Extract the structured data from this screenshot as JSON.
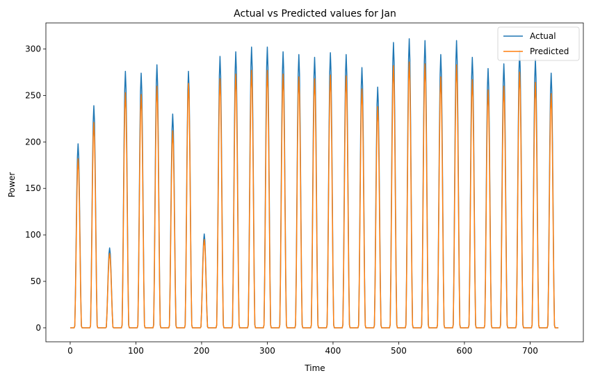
{
  "chart_data": {
    "type": "line",
    "title": "Actual vs Predicted values for Jan",
    "xlabel": "Time",
    "ylabel": "Power",
    "xlim": [
      -37,
      781
    ],
    "ylim": [
      -15,
      328
    ],
    "xticks": [
      0,
      100,
      200,
      300,
      400,
      500,
      600,
      700
    ],
    "yticks": [
      0,
      50,
      100,
      150,
      200,
      250,
      300
    ],
    "grid": false,
    "legend_position": "top-right",
    "colors": {
      "Actual": "#1f77b4",
      "Predicted": "#ff7f0e"
    },
    "n_points": 744,
    "daily_peaks": [
      {
        "center": 12,
        "actual": 198,
        "predicted": 182
      },
      {
        "center": 36,
        "actual": 239,
        "predicted": 221
      },
      {
        "center": 60,
        "actual": 86,
        "predicted": 80
      },
      {
        "center": 84,
        "actual": 276,
        "predicted": 253
      },
      {
        "center": 108,
        "actual": 274,
        "predicted": 251
      },
      {
        "center": 132,
        "actual": 283,
        "predicted": 260
      },
      {
        "center": 156,
        "actual": 230,
        "predicted": 212
      },
      {
        "center": 180,
        "actual": 276,
        "predicted": 263
      },
      {
        "center": 204,
        "actual": 101,
        "predicted": 95
      },
      {
        "center": 228,
        "actual": 292,
        "predicted": 268
      },
      {
        "center": 252,
        "actual": 297,
        "predicted": 273
      },
      {
        "center": 276,
        "actual": 302,
        "predicted": 277
      },
      {
        "center": 300,
        "actual": 302,
        "predicted": 277
      },
      {
        "center": 324,
        "actual": 297,
        "predicted": 273
      },
      {
        "center": 348,
        "actual": 294,
        "predicted": 270
      },
      {
        "center": 372,
        "actual": 291,
        "predicted": 268
      },
      {
        "center": 396,
        "actual": 296,
        "predicted": 272
      },
      {
        "center": 420,
        "actual": 294,
        "predicted": 271
      },
      {
        "center": 444,
        "actual": 280,
        "predicted": 257
      },
      {
        "center": 468,
        "actual": 259,
        "predicted": 238
      },
      {
        "center": 492,
        "actual": 307,
        "predicted": 282
      },
      {
        "center": 516,
        "actual": 311,
        "predicted": 286
      },
      {
        "center": 540,
        "actual": 309,
        "predicted": 284
      },
      {
        "center": 564,
        "actual": 294,
        "predicted": 270
      },
      {
        "center": 588,
        "actual": 309,
        "predicted": 283
      },
      {
        "center": 612,
        "actual": 291,
        "predicted": 267
      },
      {
        "center": 636,
        "actual": 279,
        "predicted": 256
      },
      {
        "center": 660,
        "actual": 284,
        "predicted": 260
      },
      {
        "center": 684,
        "actual": 298,
        "predicted": 275
      },
      {
        "center": 708,
        "actual": 289,
        "predicted": 264
      },
      {
        "center": 732,
        "actual": 274,
        "predicted": 252
      }
    ],
    "series": [
      {
        "name": "Actual"
      },
      {
        "name": "Predicted"
      }
    ]
  }
}
